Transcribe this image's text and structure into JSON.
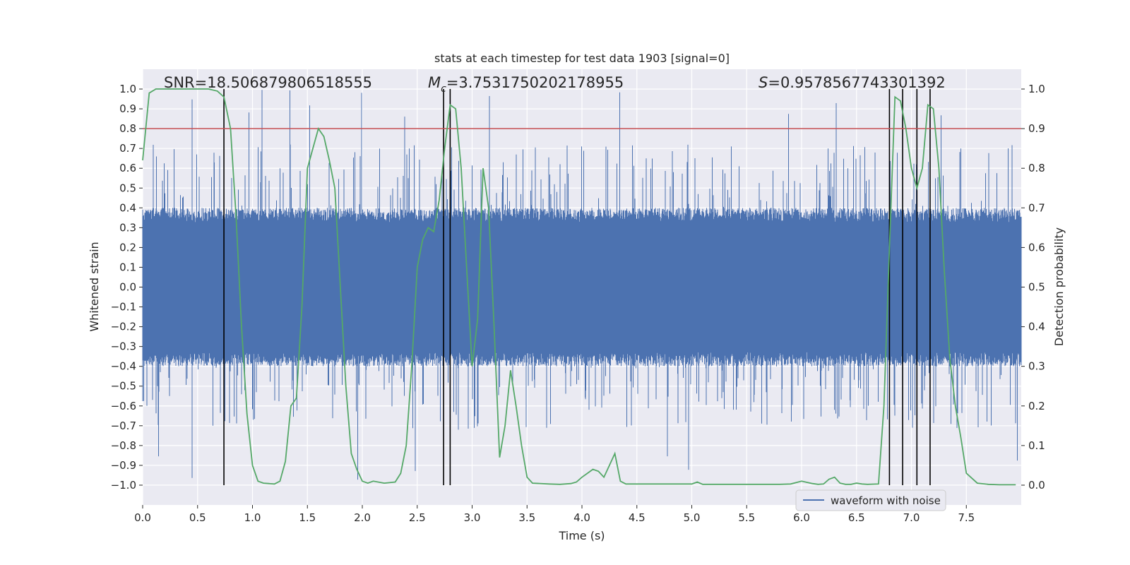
{
  "chart_data": {
    "type": "line",
    "title": "stats at each timestep for test data 1903 [signal=0]",
    "xlabel": "Time (s)",
    "ylabel_left": "Whitened strain",
    "ylabel_right": "Detection probability",
    "xlim": [
      0.0,
      8.0
    ],
    "ylim_left": [
      -1.1,
      1.1
    ],
    "ylim_right": [
      -0.05,
      1.05
    ],
    "x_ticks": [
      "0.0",
      "0.5",
      "1.0",
      "1.5",
      "2.0",
      "2.5",
      "3.0",
      "3.5",
      "4.0",
      "4.5",
      "5.0",
      "5.5",
      "6.0",
      "6.5",
      "7.0",
      "7.5"
    ],
    "y_left_ticks": [
      "1.0",
      "0.9",
      "0.8",
      "0.7",
      "0.6",
      "0.5",
      "0.4",
      "0.3",
      "0.2",
      "0.1",
      "0.0",
      "-0.1",
      "-0.2",
      "-0.3",
      "-0.4",
      "-0.5",
      "-0.6",
      "-0.7",
      "-0.8",
      "-0.9",
      "-1.0"
    ],
    "y_right_ticks": [
      "1.0",
      "0.9",
      "0.8",
      "0.7",
      "0.6",
      "0.5",
      "0.4",
      "0.3",
      "0.2",
      "0.1",
      "0.0"
    ],
    "annotations": {
      "snr": "SNR=18.506879806518555",
      "mc": "=3.7531750202178955",
      "mc_symbol": "M",
      "mc_sub": "c",
      "s": "=0.9578567743301392",
      "s_symbol": "S"
    },
    "threshold": {
      "value": 0.9,
      "axis": "right",
      "color": "#c44e52"
    },
    "vertical_lines": [
      0.74,
      2.74,
      2.8,
      6.8,
      6.92,
      7.05,
      7.17
    ],
    "series": [
      {
        "name": "waveform with noise",
        "axis": "left",
        "color": "#4c72b0",
        "kind": "noise",
        "envelope_typical": [
          -0.4,
          0.4
        ],
        "envelope_peak": [
          -1.0,
          1.0
        ]
      },
      {
        "name": "detection probability",
        "axis": "right",
        "color": "#55a868",
        "x": [
          0.0,
          0.06,
          0.12,
          0.2,
          0.3,
          0.4,
          0.5,
          0.6,
          0.68,
          0.74,
          0.8,
          0.85,
          0.9,
          0.95,
          1.0,
          1.05,
          1.1,
          1.15,
          1.2,
          1.25,
          1.3,
          1.35,
          1.4,
          1.45,
          1.5,
          1.55,
          1.6,
          1.65,
          1.7,
          1.75,
          1.8,
          1.85,
          1.9,
          1.95,
          2.0,
          2.05,
          2.1,
          2.2,
          2.3,
          2.35,
          2.4,
          2.45,
          2.5,
          2.55,
          2.6,
          2.65,
          2.7,
          2.75,
          2.8,
          2.85,
          2.9,
          2.95,
          3.0,
          3.05,
          3.1,
          3.15,
          3.2,
          3.25,
          3.3,
          3.35,
          3.4,
          3.45,
          3.5,
          3.55,
          3.7,
          3.8,
          3.9,
          3.95,
          4.0,
          4.05,
          4.1,
          4.15,
          4.2,
          4.25,
          4.3,
          4.35,
          4.4,
          4.5,
          4.7,
          5.0,
          5.05,
          5.1,
          5.3,
          5.5,
          5.8,
          5.9,
          6.0,
          6.1,
          6.15,
          6.2,
          6.25,
          6.3,
          6.35,
          6.4,
          6.45,
          6.5,
          6.55,
          6.6,
          6.7,
          6.75,
          6.8,
          6.85,
          6.9,
          6.95,
          7.0,
          7.05,
          7.1,
          7.15,
          7.2,
          7.25,
          7.3,
          7.35,
          7.4,
          7.45,
          7.5,
          7.6,
          7.7,
          7.8,
          7.95
        ],
        "y": [
          0.82,
          0.99,
          1.0,
          1.0,
          1.0,
          1.0,
          1.0,
          1.0,
          0.995,
          0.98,
          0.9,
          0.68,
          0.4,
          0.18,
          0.05,
          0.01,
          0.005,
          0.004,
          0.003,
          0.01,
          0.06,
          0.2,
          0.22,
          0.45,
          0.8,
          0.85,
          0.9,
          0.88,
          0.82,
          0.75,
          0.5,
          0.25,
          0.08,
          0.04,
          0.01,
          0.005,
          0.01,
          0.005,
          0.008,
          0.03,
          0.1,
          0.3,
          0.55,
          0.62,
          0.65,
          0.64,
          0.72,
          0.85,
          0.96,
          0.95,
          0.8,
          0.55,
          0.3,
          0.42,
          0.8,
          0.7,
          0.4,
          0.07,
          0.15,
          0.29,
          0.2,
          0.1,
          0.02,
          0.005,
          0.003,
          0.002,
          0.004,
          0.008,
          0.02,
          0.03,
          0.04,
          0.035,
          0.02,
          0.05,
          0.08,
          0.01,
          0.003,
          0.003,
          0.003,
          0.003,
          0.008,
          0.002,
          0.002,
          0.002,
          0.002,
          0.003,
          0.01,
          0.004,
          0.002,
          0.003,
          0.015,
          0.02,
          0.005,
          0.002,
          0.002,
          0.005,
          0.003,
          0.002,
          0.003,
          0.2,
          0.6,
          0.98,
          0.97,
          0.9,
          0.8,
          0.75,
          0.8,
          0.96,
          0.95,
          0.8,
          0.54,
          0.32,
          0.2,
          0.12,
          0.03,
          0.005,
          0.002,
          0.001,
          0.001
        ]
      }
    ],
    "legend": {
      "position": "lower-right",
      "entries": [
        "waveform with noise"
      ]
    }
  }
}
